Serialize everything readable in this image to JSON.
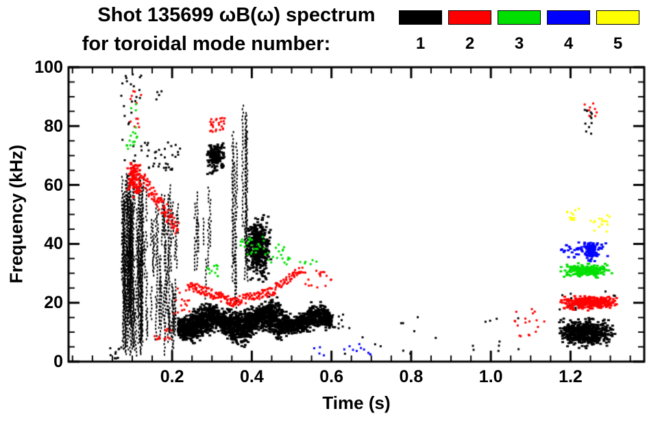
{
  "title_line1": "Shot 135699 ωB(ω) spectrum",
  "title_line2": "for toroidal mode number:",
  "legend": {
    "entries": [
      {
        "label": "1",
        "color": "#000000"
      },
      {
        "label": "2",
        "color": "#ff0000"
      },
      {
        "label": "3",
        "color": "#00e000"
      },
      {
        "label": "4",
        "color": "#0000ff"
      },
      {
        "label": "5",
        "color": "#ffff00"
      }
    ]
  },
  "chart_data": {
    "type": "scatter",
    "title": "Shot 135699 ωB(ω) spectrum for toroidal mode number: 1 2 3 4 5",
    "xlabel": "Time (s)",
    "ylabel": "Frequency (kHz)",
    "xlim": [
      -0.06,
      1.385
    ],
    "ylim": [
      0,
      100
    ],
    "x_ticks": [
      0.2,
      0.4,
      0.6,
      0.8,
      1.0,
      1.2
    ],
    "x_tick_labels": [
      "0.2",
      "0.4",
      "0.6",
      "0.8",
      "1.0",
      "1.2"
    ],
    "x_minor_step": 0.05,
    "y_ticks": [
      0,
      20,
      40,
      60,
      80,
      100
    ],
    "y_tick_labels": [
      "0",
      "20",
      "40",
      "60",
      "80",
      "100"
    ],
    "y_minor_step": 5,
    "grid": false,
    "legend_position": "top-right",
    "series": [
      {
        "name": "n=1",
        "color": "#000000",
        "clusters": [
          {
            "type": "streaks",
            "t": [
              0.072,
              0.125
            ],
            "f": [
              2,
              68
            ],
            "fspan": [
              8,
              40
            ],
            "n": 70
          },
          {
            "type": "dots",
            "t": [
              0.07,
              0.125
            ],
            "f": [
              68,
              100
            ],
            "n": 30
          },
          {
            "type": "streaks",
            "t": [
              0.125,
              0.215
            ],
            "f": [
              2,
              62
            ],
            "fspan": [
              4,
              22
            ],
            "n": 55
          },
          {
            "type": "dots",
            "t": [
              0.13,
              0.22
            ],
            "f": [
              65,
              75
            ],
            "n": 35
          },
          {
            "type": "dots",
            "t": [
              0.155,
              0.175
            ],
            "f": [
              88,
              93
            ],
            "n": 4
          },
          {
            "type": "band",
            "t": [
              0.215,
              0.365
            ],
            "f": [
              5,
              21
            ],
            "n": 1100
          },
          {
            "type": "streaks",
            "t": [
              0.255,
              0.3
            ],
            "f": [
              20,
              60
            ],
            "fspan": [
              4,
              18
            ],
            "n": 12
          },
          {
            "type": "blob",
            "t": [
              0.285,
              0.335
            ],
            "f": [
              63,
              76
            ],
            "n": 150
          },
          {
            "type": "streaks",
            "t": [
              0.35,
              0.39
            ],
            "f": [
              18,
              88
            ],
            "fspan": [
              10,
              50
            ],
            "n": 14
          },
          {
            "type": "blob",
            "t": [
              0.385,
              0.45
            ],
            "f": [
              26,
              52
            ],
            "n": 420
          },
          {
            "type": "band",
            "t": [
              0.365,
              0.475
            ],
            "f": [
              5,
              22
            ],
            "n": 800
          },
          {
            "type": "band",
            "t": [
              0.475,
              0.6
            ],
            "f": [
              8,
              20
            ],
            "n": 650
          },
          {
            "type": "dots",
            "t": [
              0.6,
              0.63
            ],
            "f": [
              11,
              16
            ],
            "n": 12
          },
          {
            "type": "dots",
            "t": [
              0.63,
              1.16
            ],
            "f": [
              2,
              16
            ],
            "n": 22
          },
          {
            "type": "blob",
            "t": [
              1.165,
              1.315
            ],
            "f": [
              4,
              16
            ],
            "n": 520
          },
          {
            "type": "dots",
            "t": [
              1.15,
              1.33
            ],
            "f": [
              17,
              24
            ],
            "n": 14
          },
          {
            "type": "dots",
            "t": [
              1.23,
              1.27
            ],
            "f": [
              77,
              88
            ],
            "n": 12
          },
          {
            "type": "dots",
            "t": [
              0.04,
              0.075
            ],
            "f": [
              1,
              6
            ],
            "n": 10
          }
        ]
      },
      {
        "name": "n=2",
        "color": "#ff0000",
        "clusters": [
          {
            "type": "blob",
            "t": [
              0.085,
              0.128
            ],
            "f": [
              54,
              70
            ],
            "n": 90
          },
          {
            "type": "dots",
            "t": [
              0.09,
              0.125
            ],
            "f": [
              78,
              93
            ],
            "n": 12
          },
          {
            "type": "trace",
            "t": [
              0.128,
              0.215
            ],
            "f0": 62,
            "f1": 45,
            "jit": 3,
            "n": 90
          },
          {
            "type": "dots",
            "t": [
              0.155,
              0.2
            ],
            "f": [
              5,
              12
            ],
            "n": 14
          },
          {
            "type": "dots",
            "t": [
              0.205,
              0.245
            ],
            "f": [
              16,
              30
            ],
            "n": 16
          },
          {
            "type": "dots",
            "t": [
              0.295,
              0.335
            ],
            "f": [
              78,
              83
            ],
            "n": 26
          },
          {
            "type": "trace",
            "t": [
              0.24,
              0.36
            ],
            "f0": 26,
            "f1": 20,
            "jit": 1.6,
            "n": 110
          },
          {
            "type": "trace",
            "t": [
              0.36,
              0.46
            ],
            "f0": 20.5,
            "f1": 24,
            "jit": 1.6,
            "n": 80
          },
          {
            "type": "trace",
            "t": [
              0.46,
              0.525
            ],
            "f0": 25,
            "f1": 31,
            "jit": 1.6,
            "n": 45
          },
          {
            "type": "dots",
            "t": [
              0.525,
              0.6
            ],
            "f": [
              25,
              31
            ],
            "n": 18
          },
          {
            "type": "dots",
            "t": [
              1.02,
              1.15
            ],
            "f": [
              8,
              18
            ],
            "n": 18
          },
          {
            "type": "blob",
            "t": [
              1.17,
              1.325
            ],
            "f": [
              17,
              23
            ],
            "n": 300
          },
          {
            "type": "dots",
            "t": [
              1.235,
              1.27
            ],
            "f": [
              82,
              88
            ],
            "n": 8
          }
        ]
      },
      {
        "name": "n=3",
        "color": "#00e000",
        "clusters": [
          {
            "type": "dots",
            "t": [
              0.085,
              0.115
            ],
            "f": [
              71,
              80
            ],
            "n": 14
          },
          {
            "type": "dots",
            "t": [
              0.095,
              0.11
            ],
            "f": [
              85,
              90
            ],
            "n": 3
          },
          {
            "type": "dots",
            "t": [
              0.285,
              0.315
            ],
            "f": [
              29,
              33
            ],
            "n": 12
          },
          {
            "type": "dots",
            "t": [
              0.37,
              0.435
            ],
            "f": [
              36,
              43
            ],
            "n": 26
          },
          {
            "type": "dots",
            "t": [
              0.435,
              0.5
            ],
            "f": [
              33,
              40
            ],
            "n": 18
          },
          {
            "type": "dots",
            "t": [
              0.52,
              0.565
            ],
            "f": [
              33,
              36
            ],
            "n": 6
          },
          {
            "type": "blob",
            "t": [
              1.17,
              1.31
            ],
            "f": [
              28,
              34
            ],
            "n": 190
          }
        ]
      },
      {
        "name": "n=4",
        "color": "#0000ff",
        "clusters": [
          {
            "type": "dots",
            "t": [
              0.555,
              0.585
            ],
            "f": [
              2,
              5
            ],
            "n": 4
          },
          {
            "type": "dots",
            "t": [
              0.62,
              0.7
            ],
            "f": [
              2,
              6
            ],
            "n": 10
          },
          {
            "type": "blob",
            "t": [
              1.17,
              1.3
            ],
            "f": [
              34,
              42
            ],
            "n": 60
          },
          {
            "type": "blob",
            "t": [
              1.235,
              1.265
            ],
            "f": [
              33,
              42
            ],
            "n": 90
          }
        ]
      },
      {
        "name": "n=5",
        "color": "#ffff00",
        "clusters": [
          {
            "type": "dots",
            "t": [
              1.19,
              1.225
            ],
            "f": [
              48,
              53
            ],
            "n": 12
          },
          {
            "type": "dots",
            "t": [
              1.25,
              1.295
            ],
            "f": [
              44,
              49
            ],
            "n": 12
          },
          {
            "type": "dots",
            "t": [
              1.27,
              1.3
            ],
            "f": [
              47,
              50
            ],
            "n": 4
          }
        ]
      }
    ]
  }
}
